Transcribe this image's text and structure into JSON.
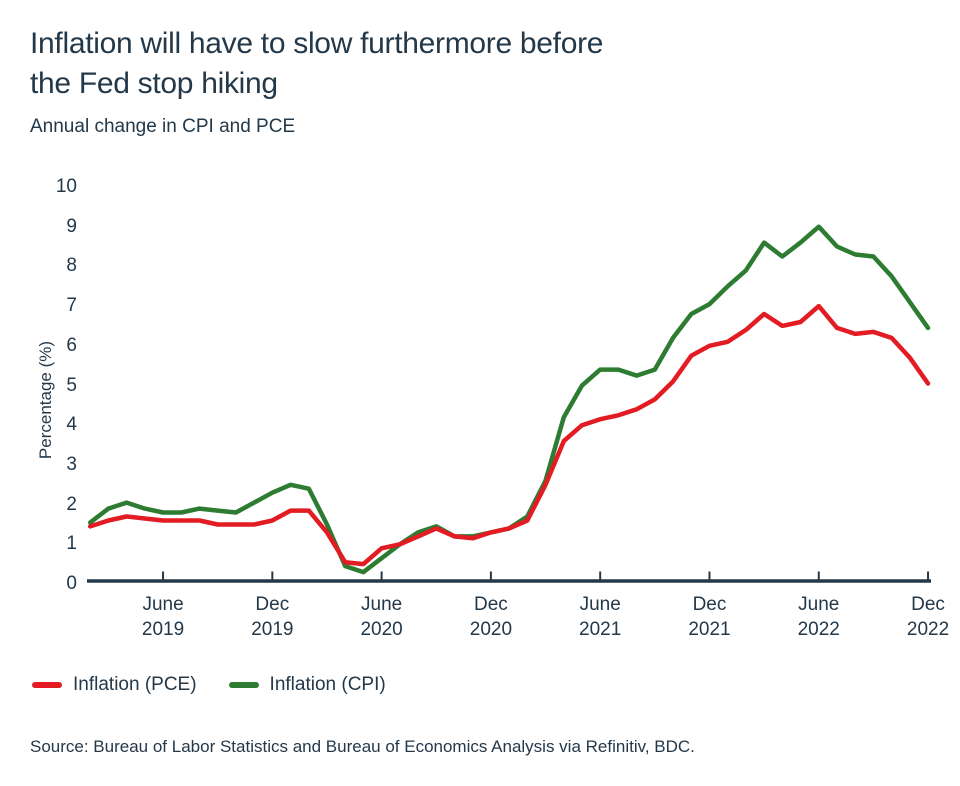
{
  "title_line1": "Inflation will have to slow furthermore before",
  "title_line2": "the Fed stop hiking",
  "subtitle": "Annual change in CPI and PCE",
  "source": "Source: Bureau of Labor Statistics and Bureau of Economics Analysis via Refinitiv, BDC.",
  "colors": {
    "text": "#233849",
    "axis": "#233849",
    "pce_red": "#e31b23",
    "cpi_green": "#2d7c32",
    "background": "#ffffff"
  },
  "legend": {
    "items": [
      {
        "label": "Inflation (PCE)"
      },
      {
        "label": "Inflation (CPI)"
      }
    ]
  },
  "chart_data": {
    "type": "line",
    "title": "Inflation will have to slow furthermore before the Fed stop hiking",
    "subtitle": "Annual change in CPI and PCE",
    "xlabel": "",
    "ylabel": "Percentage (%)",
    "ylim": [
      0,
      10
    ],
    "y_ticks": [
      0,
      1,
      2,
      3,
      4,
      5,
      6,
      7,
      8,
      9,
      10
    ],
    "grid": false,
    "legend_position": "bottom-left",
    "x_unit": "month",
    "x_range": {
      "start": "2019-02",
      "end": "2022-12"
    },
    "x_ticks": [
      {
        "label": "June",
        "year": "2019",
        "index": 4
      },
      {
        "label": "Dec",
        "year": "2019",
        "index": 10
      },
      {
        "label": "June",
        "year": "2020",
        "index": 16
      },
      {
        "label": "Dec",
        "year": "2020",
        "index": 22
      },
      {
        "label": "June",
        "year": "2021",
        "index": 28
      },
      {
        "label": "Dec",
        "year": "2021",
        "index": 34
      },
      {
        "label": "June",
        "year": "2022",
        "index": 40
      },
      {
        "label": "Dec",
        "year": "2022",
        "index": 46
      }
    ],
    "series": [
      {
        "id": "pce",
        "name": "Inflation (PCE)",
        "color": "#e31b23",
        "values": [
          1.45,
          1.6,
          1.7,
          1.65,
          1.6,
          1.6,
          1.6,
          1.5,
          1.5,
          1.5,
          1.6,
          1.85,
          1.85,
          1.3,
          0.55,
          0.5,
          0.9,
          1.0,
          1.2,
          1.4,
          1.2,
          1.15,
          1.3,
          1.4,
          1.6,
          2.5,
          3.6,
          4.0,
          4.15,
          4.25,
          4.4,
          4.65,
          5.1,
          5.75,
          6.0,
          6.1,
          6.4,
          6.8,
          6.5,
          6.6,
          7.0,
          6.45,
          6.3,
          6.35,
          6.2,
          5.7,
          5.05
        ]
      },
      {
        "id": "cpi",
        "name": "Inflation (CPI)",
        "color": "#2d7c32",
        "values": [
          1.55,
          1.9,
          2.05,
          1.9,
          1.8,
          1.8,
          1.9,
          1.85,
          1.8,
          2.05,
          2.3,
          2.5,
          2.4,
          1.5,
          0.45,
          0.3,
          0.65,
          1.0,
          1.3,
          1.45,
          1.2,
          1.2,
          1.3,
          1.4,
          1.7,
          2.6,
          4.2,
          5.0,
          5.4,
          5.4,
          5.25,
          5.4,
          6.2,
          6.8,
          7.05,
          7.5,
          7.9,
          8.6,
          8.25,
          8.6,
          9.0,
          8.5,
          8.3,
          8.25,
          7.75,
          7.1,
          6.45
        ]
      }
    ]
  }
}
